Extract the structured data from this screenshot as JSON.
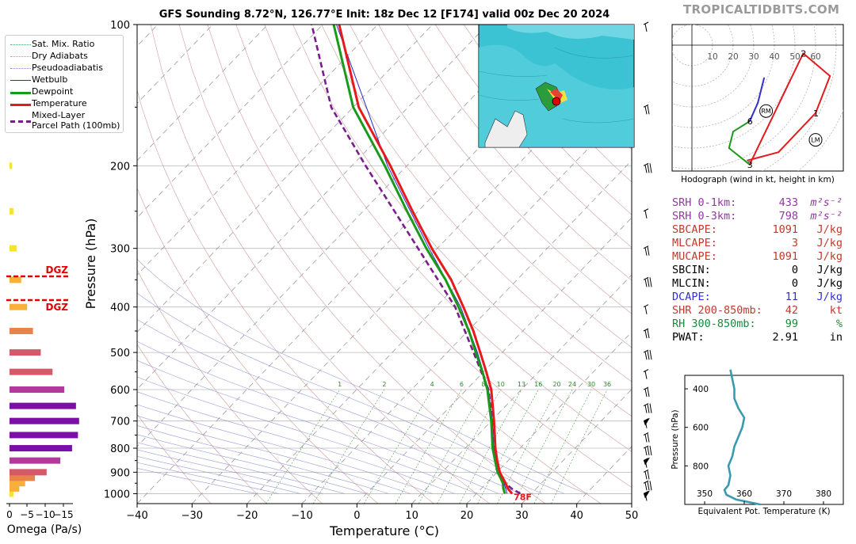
{
  "title": "GFS Sounding 8.72°N, 126.77°E Init: 18z Dec 12 [F174] valid 00z Dec 20 2024",
  "brand": "TROPICALTIDBITS.COM",
  "colors": {
    "temperature": "#e41a1c",
    "dewpoint": "#1a9a1a",
    "parcel": "#7b1c8c",
    "wetbulb": "#2a2acc",
    "srh": "#8e3a9e",
    "cape": "#c0392b",
    "dcape": "#3232c8",
    "rh": "#1a8a3a"
  },
  "legend": [
    {
      "label": "Sat. Mix. Ratio",
      "style": "dotted-green"
    },
    {
      "label": "Dry Adiabats",
      "style": "dotted-red"
    },
    {
      "label": "Pseudoadiabatis",
      "style": "dotted-blue"
    },
    {
      "label": "Wetbulb",
      "style": "blue"
    },
    {
      "label": "Dewpoint",
      "style": "green"
    },
    {
      "label": "Temperature",
      "style": "red"
    },
    {
      "label": "Mixed-Layer\nParcel Path (100mb)",
      "style": "purple-dashed"
    }
  ],
  "skewt": {
    "xlabel": "Temperature (°C)",
    "ylabel": "Pressure (hPa)",
    "xticks": [
      -40,
      -30,
      -20,
      -10,
      0,
      10,
      20,
      30,
      40,
      50
    ],
    "yticks": [
      100,
      200,
      300,
      400,
      500,
      600,
      700,
      800,
      900,
      1000
    ],
    "mixing_ratio_labels": [
      "1",
      "2",
      "4",
      "6",
      "8",
      "10",
      "13",
      "16",
      "20",
      "24",
      "30",
      "36"
    ],
    "sfc_temp_label": "78F"
  },
  "omega": {
    "xlabel": "Omega (Pa/s)",
    "xticks": [
      "0",
      "−5",
      "−10",
      "−15"
    ],
    "dgz_label": "DGZ"
  },
  "hodograph": {
    "caption": "Hodograph (wind in kt, height in km)",
    "ring_labels": [
      "10",
      "20",
      "30",
      "40",
      "50",
      "60"
    ],
    "height_labels": [
      "1",
      "2",
      "3",
      "6"
    ],
    "rm_label": "RM",
    "lm_label": "LM"
  },
  "params": [
    {
      "label": "SRH 0-1km:",
      "value": "433",
      "unit": "m²s⁻²",
      "color": "#8e3a9e"
    },
    {
      "label": "SRH 0-3km:",
      "value": "798",
      "unit": "m²s⁻²",
      "color": "#8e3a9e"
    },
    {
      "label": "SBCAPE:",
      "value": "1091",
      "unit": "J/kg",
      "color": "#c0392b"
    },
    {
      "label": "MLCAPE:",
      "value": "3",
      "unit": "J/kg",
      "color": "#c0392b"
    },
    {
      "label": "MUCAPE:",
      "value": "1091",
      "unit": "J/kg",
      "color": "#c0392b"
    },
    {
      "label": "SBCIN:",
      "value": "0",
      "unit": "J/kg",
      "color": "#000000"
    },
    {
      "label": "MLCIN:",
      "value": "0",
      "unit": "J/kg",
      "color": "#000000"
    },
    {
      "label": "DCAPE:",
      "value": "11",
      "unit": "J/kg",
      "color": "#3232c8"
    },
    {
      "label": "SHR 200-850mb:",
      "value": "42",
      "unit": "kt",
      "color": "#c0392b"
    },
    {
      "label": "RH 300-850mb:",
      "value": "99",
      "unit": "%",
      "color": "#1a8a3a"
    },
    {
      "label": "PWAT:",
      "value": "2.91",
      "unit": "in",
      "color": "#000000"
    }
  ],
  "theta_e": {
    "xlabel": "Equivalent Pot. Temperature (K)",
    "ylabel": "Pressure (hPa)",
    "xticks": [
      "350",
      "360",
      "370",
      "380"
    ],
    "yticks": [
      "400",
      "600",
      "800"
    ]
  },
  "chart_data": [
    {
      "type": "line",
      "title": "GFS Sounding 8.72°N, 126.77°E Init: 18z Dec 12 [F174] valid 00z Dec 20 2024",
      "xlabel": "Temperature (°C)",
      "ylabel": "Pressure (hPa)",
      "xlim": [
        -40,
        50
      ],
      "ylim": [
        1000,
        100
      ],
      "y_scale": "log",
      "x": "pressure_hPa",
      "series": [
        {
          "name": "Temperature",
          "points": [
            [
              1000,
              26.5
            ],
            [
              975,
              24.8
            ],
            [
              950,
              23.5
            ],
            [
              925,
              22.0
            ],
            [
              900,
              20.5
            ],
            [
              850,
              18.0
            ],
            [
              800,
              15.5
            ],
            [
              700,
              10.5
            ],
            [
              600,
              4.5
            ],
            [
              550,
              0.5
            ],
            [
              500,
              -4.0
            ],
            [
              450,
              -9.0
            ],
            [
              400,
              -15.0
            ],
            [
              350,
              -22.0
            ],
            [
              300,
              -31.0
            ],
            [
              250,
              -41.0
            ],
            [
              200,
              -53.0
            ],
            [
              150,
              -69.0
            ],
            [
              100,
              -87.0
            ]
          ]
        },
        {
          "name": "Dewpoint",
          "points": [
            [
              1000,
              25.2
            ],
            [
              975,
              24.0
            ],
            [
              950,
              23.0
            ],
            [
              925,
              21.6
            ],
            [
              900,
              20.1
            ],
            [
              850,
              17.6
            ],
            [
              800,
              15.0
            ],
            [
              700,
              10.0
            ],
            [
              600,
              3.8
            ],
            [
              550,
              -0.2
            ],
            [
              500,
              -4.8
            ],
            [
              450,
              -9.8
            ],
            [
              400,
              -15.9
            ],
            [
              350,
              -23.0
            ],
            [
              300,
              -32.0
            ],
            [
              250,
              -42.0
            ],
            [
              200,
              -54.0
            ],
            [
              150,
              -70.0
            ],
            [
              100,
              -88.0
            ]
          ]
        },
        {
          "name": "Mixed-Layer Parcel Path (100mb)",
          "points": [
            [
              1000,
              28.0
            ],
            [
              975,
              25.5
            ],
            [
              950,
              23.4
            ],
            [
              900,
              20.5
            ],
            [
              850,
              18.0
            ],
            [
              800,
              15.4
            ],
            [
              700,
              10.2
            ],
            [
              600,
              4.0
            ],
            [
              500,
              -5.2
            ],
            [
              400,
              -16.5
            ],
            [
              300,
              -33.5
            ],
            [
              200,
              -57.5
            ],
            [
              150,
              -74.0
            ],
            [
              100,
              -92.0
            ]
          ]
        },
        {
          "name": "Wetbulb",
          "points": [
            [
              1000,
              25.6
            ],
            [
              950,
              23.2
            ],
            [
              900,
              20.3
            ],
            [
              850,
              17.8
            ],
            [
              800,
              15.2
            ],
            [
              700,
              10.2
            ],
            [
              600,
              4.0
            ],
            [
              500,
              -4.5
            ],
            [
              400,
              -15.5
            ],
            [
              300,
              -31.5
            ],
            [
              200,
              -53.5
            ],
            [
              100,
              -87.5
            ]
          ]
        }
      ]
    },
    {
      "type": "bar",
      "title": "",
      "xlabel": "Omega (Pa/s)",
      "xlim": [
        0,
        -15
      ],
      "pressure_levels": [
        1000,
        975,
        950,
        925,
        900,
        850,
        800,
        750,
        700,
        650,
        600,
        550,
        500,
        450,
        400,
        350,
        300,
        250,
        200
      ],
      "values": [
        -1.0,
        -2.5,
        -4.0,
        -6.5,
        -9.5,
        -13.0,
        -16.0,
        -17.5,
        -17.8,
        -17.0,
        -14.0,
        -11.0,
        -8.0,
        -6.0,
        -4.5,
        -3.0,
        -1.8,
        -1.0,
        -0.6
      ]
    },
    {
      "type": "line",
      "title": "Hodograph (wind in kt, height in km)",
      "xlim": [
        -10,
        70
      ],
      "ylim": [
        -60,
        15
      ],
      "series": [
        {
          "name": "Hodograph",
          "points": [
            [
              0.0,
              27.0,
              -56.0
            ],
            [
              0.5,
              42.0,
              -52.0
            ],
            [
              1.0,
              60.0,
              -33.0
            ],
            [
              1.5,
              67.0,
              -15.0
            ],
            [
              2.0,
              54.0,
              -4.0
            ],
            [
              3.0,
              28.0,
              -58.0
            ],
            [
              4.0,
              18.0,
              -50.0
            ],
            [
              5.0,
              20.0,
              -42.0
            ],
            [
              6.0,
              28.0,
              -37.0
            ],
            [
              7.0,
              32.0,
              -28.0
            ],
            [
              8.0,
              35.0,
              -16.0
            ]
          ]
        }
      ],
      "markers": [
        {
          "name": "RM",
          "u": 36.0,
          "v": -32.0
        },
        {
          "name": "LM",
          "u": 60.0,
          "v": -46.0
        }
      ]
    },
    {
      "type": "line",
      "title": "",
      "xlabel": "Equivalent Pot. Temperature (K)",
      "ylabel": "Pressure (hPa)",
      "xlim": [
        345,
        385
      ],
      "ylim": [
        1000,
        300
      ],
      "series": [
        {
          "name": "Equivalent Pot. Temperature",
          "points": [
            [
              1000,
              364.0
            ],
            [
              975,
              358.0
            ],
            [
              950,
              355.5
            ],
            [
              925,
              355.0
            ],
            [
              900,
              356.0
            ],
            [
              850,
              356.5
            ],
            [
              800,
              356.0
            ],
            [
              750,
              357.0
            ],
            [
              700,
              357.5
            ],
            [
              650,
              358.5
            ],
            [
              600,
              359.5
            ],
            [
              550,
              360.0
            ],
            [
              500,
              358.5
            ],
            [
              450,
              357.5
            ],
            [
              400,
              357.5
            ],
            [
              350,
              357.0
            ],
            [
              300,
              356.5
            ]
          ]
        }
      ]
    }
  ]
}
